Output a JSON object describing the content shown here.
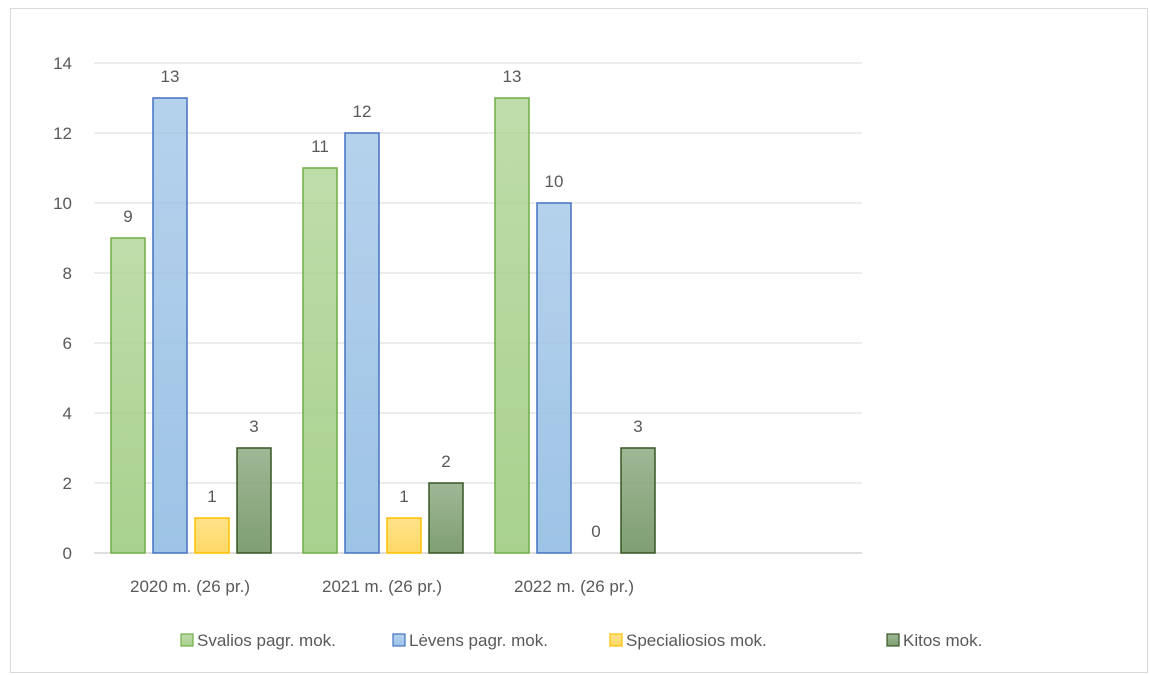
{
  "chart_data": {
    "type": "bar",
    "title": "",
    "xlabel": "",
    "ylabel": "",
    "categories": [
      "2020 m. (26 pr.)",
      "2021 m. (26 pr.)",
      "2022 m. (26 pr.)"
    ],
    "ylim": [
      0,
      14
    ],
    "yticks": [
      0,
      2,
      4,
      6,
      8,
      10,
      12,
      14
    ],
    "grid": true,
    "legend_position": "bottom",
    "series": [
      {
        "name": "Svalios pagr. mok.",
        "values": [
          9,
          11,
          13
        ],
        "color": "#a9d18e",
        "stroke": "#70ad47"
      },
      {
        "name": "Lėvens pagr. mok.",
        "values": [
          13,
          12,
          10
        ],
        "color": "#9dc3e6",
        "stroke": "#4472c4"
      },
      {
        "name": "Specialiosios mok.",
        "values": [
          1,
          1,
          0
        ],
        "color": "#ffd966",
        "stroke": "#ffc000"
      },
      {
        "name": "Kitos mok.",
        "values": [
          3,
          2,
          3
        ],
        "color": "#7f9f73",
        "stroke": "#375623"
      }
    ]
  }
}
